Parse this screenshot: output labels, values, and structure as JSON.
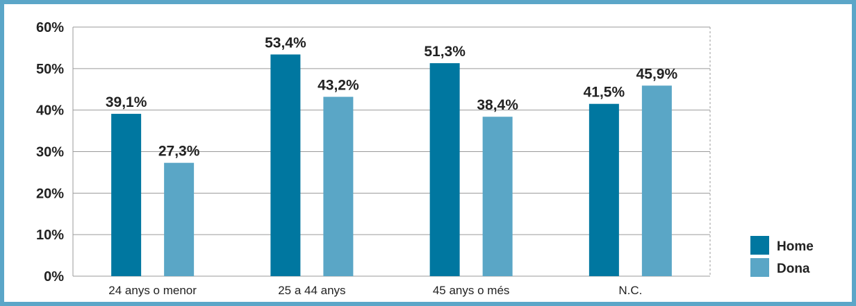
{
  "chart_data": {
    "type": "bar",
    "categories": [
      "24 anys o menor",
      "25 a 44 anys",
      "45 anys o més",
      "N.C."
    ],
    "series": [
      {
        "name": "Home",
        "values": [
          39.1,
          53.4,
          51.3,
          41.5
        ],
        "labels": [
          "39,1%",
          "53,4%",
          "51,3%",
          "41,5%"
        ],
        "color": "#0077a0"
      },
      {
        "name": "Dona",
        "values": [
          27.3,
          43.2,
          38.4,
          45.9
        ],
        "labels": [
          "27,3%",
          "43,2%",
          "38,4%",
          "45,9%"
        ],
        "color": "#5aa6c6"
      }
    ],
    "ylim": [
      0,
      60
    ],
    "yticks": [
      0,
      10,
      20,
      30,
      40,
      50,
      60
    ],
    "ytick_labels": [
      "0%",
      "10%",
      "20%",
      "30%",
      "40%",
      "50%",
      "60%"
    ],
    "grid": true,
    "legend_position": "bottom-right",
    "frame_color": "#5ba6c8"
  }
}
